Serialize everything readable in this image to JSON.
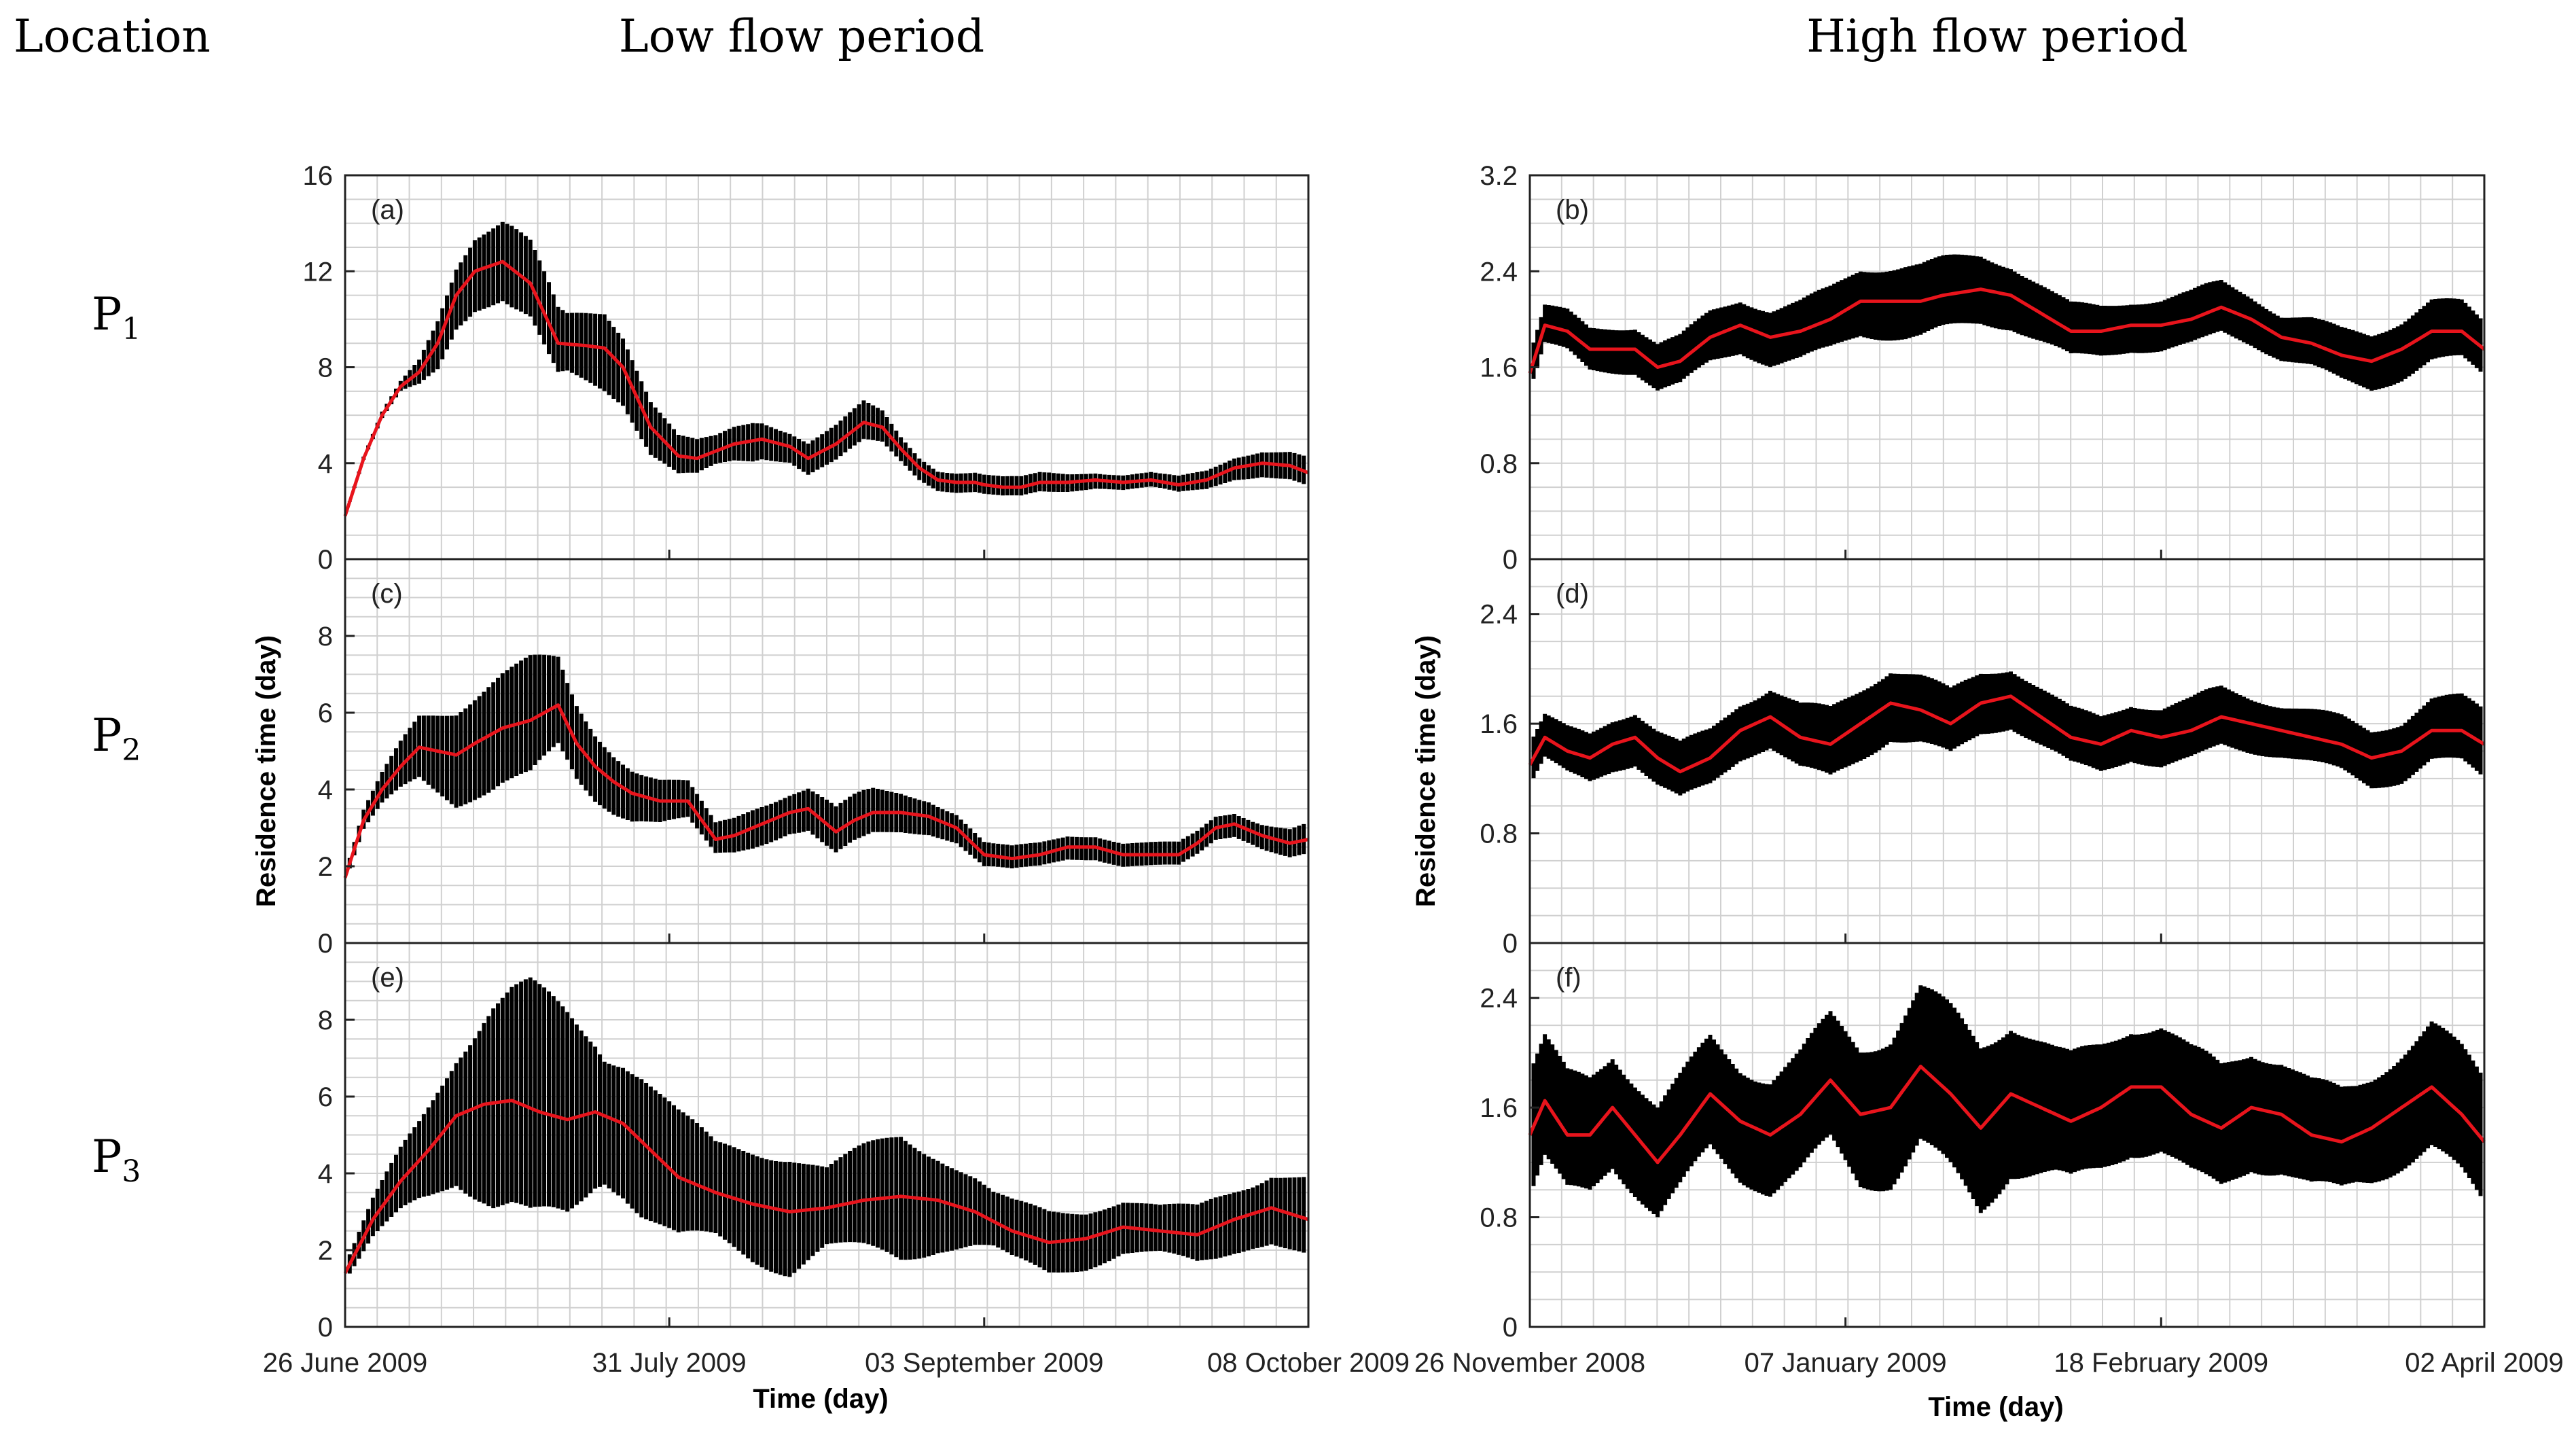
{
  "header": {
    "location_label": "Location",
    "low_flow_title": "Low flow period",
    "high_flow_title": "High flow period"
  },
  "rows": [
    {
      "label": "P",
      "sub": "1"
    },
    {
      "label": "P",
      "sub": "2"
    },
    {
      "label": "P",
      "sub": "3"
    }
  ],
  "colors": {
    "envelope": "#000000",
    "mean_line": "#e8141c",
    "grid": "#d0d0d0",
    "axis": "#222222"
  },
  "axes_text": {
    "ylabel": "Residence time (day)",
    "xlabel": "Time (day)"
  },
  "chart_data": [
    {
      "type": "line",
      "panel": "(a)",
      "group": "Low flow period",
      "location": "P1",
      "x_ticks": [
        "26 June  2009",
        "31 July 2009",
        "03 September  2009",
        "08 October  2009"
      ],
      "x_tick_pos": [
        0,
        35,
        69,
        104
      ],
      "xlim": [
        0,
        104
      ],
      "ylim": [
        0,
        16
      ],
      "yticks": [
        "0",
        "4",
        "8",
        "12",
        "16"
      ],
      "ytick_values": [
        0,
        4,
        8,
        12,
        16
      ],
      "cycle_days": 0.5,
      "series": [
        {
          "name": "mean",
          "x": [
            0,
            2,
            4,
            6,
            8,
            10,
            12,
            14,
            17,
            20,
            23,
            26,
            28,
            30,
            33,
            36,
            38,
            40,
            42,
            45,
            48,
            50,
            53,
            56,
            58,
            60,
            62,
            64,
            66,
            68,
            69,
            71,
            73,
            75,
            78,
            81,
            84,
            87,
            90,
            93,
            96,
            99,
            102,
            104
          ],
          "values": [
            1.8,
            4.2,
            6.0,
            7.2,
            7.8,
            9.0,
            11.0,
            12.0,
            12.4,
            11.5,
            9.0,
            8.9,
            8.8,
            8.0,
            5.5,
            4.3,
            4.2,
            4.5,
            4.8,
            5.0,
            4.7,
            4.2,
            4.8,
            5.7,
            5.5,
            4.6,
            3.8,
            3.3,
            3.2,
            3.2,
            3.1,
            3.0,
            3.0,
            3.2,
            3.2,
            3.3,
            3.2,
            3.3,
            3.1,
            3.3,
            3.8,
            4.0,
            3.9,
            3.6
          ]
        },
        {
          "name": "amplitude",
          "x": [
            0,
            6,
            8,
            10,
            14,
            18,
            22,
            24,
            28,
            32,
            36,
            40,
            44,
            48,
            52,
            56,
            60,
            64,
            70,
            76,
            82,
            88,
            94,
            98,
            104
          ],
          "values": [
            0.0,
            0.2,
            0.5,
            1.0,
            1.5,
            1.7,
            1.5,
            1.2,
            1.6,
            1.2,
            0.8,
            0.6,
            0.8,
            0.6,
            0.7,
            0.8,
            0.5,
            0.4,
            0.4,
            0.4,
            0.3,
            0.3,
            0.4,
            0.5,
            0.6
          ]
        }
      ]
    },
    {
      "type": "line",
      "panel": "(c)",
      "group": "Low flow period",
      "location": "P2",
      "x_ticks": [
        "26 June  2009",
        "31 July 2009",
        "03 September  2009",
        "08 October  2009"
      ],
      "x_tick_pos": [
        0,
        35,
        69,
        104
      ],
      "xlim": [
        0,
        104
      ],
      "ylim": [
        0,
        10
      ],
      "yticks": [
        "0",
        "2",
        "4",
        "6",
        "8"
      ],
      "ytick_values": [
        0,
        2,
        4,
        6,
        8
      ],
      "cycle_days": 0.5,
      "series": [
        {
          "name": "mean",
          "x": [
            0,
            2,
            4,
            6,
            8,
            10,
            12,
            14,
            17,
            20,
            23,
            25,
            27,
            29,
            31,
            34,
            37,
            40,
            42,
            45,
            48,
            50,
            53,
            55,
            57,
            60,
            63,
            66,
            69,
            72,
            75,
            78,
            81,
            84,
            87,
            90,
            92,
            94,
            96,
            99,
            102,
            104
          ],
          "values": [
            1.7,
            3.2,
            4.0,
            4.6,
            5.1,
            5.0,
            4.9,
            5.2,
            5.6,
            5.8,
            6.2,
            5.2,
            4.6,
            4.2,
            3.9,
            3.7,
            3.7,
            2.7,
            2.8,
            3.1,
            3.4,
            3.5,
            2.9,
            3.2,
            3.4,
            3.4,
            3.3,
            3.0,
            2.3,
            2.2,
            2.3,
            2.5,
            2.5,
            2.3,
            2.3,
            2.3,
            2.6,
            3.0,
            3.1,
            2.8,
            2.6,
            2.7
          ]
        },
        {
          "name": "amplitude",
          "x": [
            0,
            4,
            8,
            12,
            16,
            20,
            24,
            28,
            32,
            36,
            40,
            44,
            48,
            52,
            56,
            60,
            64,
            70,
            76,
            82,
            88,
            94,
            98,
            104
          ],
          "values": [
            0.1,
            0.4,
            0.8,
            1.2,
            1.4,
            1.5,
            1.0,
            0.8,
            0.6,
            0.5,
            0.4,
            0.5,
            0.5,
            0.6,
            0.6,
            0.5,
            0.4,
            0.3,
            0.3,
            0.3,
            0.3,
            0.3,
            0.3,
            0.4
          ]
        }
      ]
    },
    {
      "type": "line",
      "panel": "(e)",
      "group": "Low flow period",
      "location": "P3",
      "x_ticks": [
        "26 June  2009",
        "31 July 2009",
        "03 September  2009",
        "08 October  2009"
      ],
      "x_tick_pos": [
        0,
        35,
        69,
        104
      ],
      "xlim": [
        0,
        104
      ],
      "ylim": [
        0,
        10
      ],
      "yticks": [
        "0",
        "2",
        "4",
        "6",
        "8"
      ],
      "ytick_values": [
        0,
        2,
        4,
        6,
        8
      ],
      "cycle_days": 0.5,
      "series": [
        {
          "name": "mean",
          "x": [
            0,
            3,
            6,
            9,
            12,
            15,
            18,
            21,
            24,
            27,
            30,
            33,
            36,
            40,
            44,
            48,
            52,
            56,
            60,
            64,
            68,
            72,
            76,
            80,
            84,
            88,
            92,
            96,
            100,
            104
          ],
          "values": [
            1.4,
            2.8,
            3.8,
            4.6,
            5.5,
            5.8,
            5.9,
            5.6,
            5.4,
            5.6,
            5.3,
            4.6,
            3.9,
            3.5,
            3.2,
            3.0,
            3.1,
            3.3,
            3.4,
            3.3,
            3.0,
            2.5,
            2.2,
            2.3,
            2.6,
            2.5,
            2.4,
            2.8,
            3.1,
            2.8
          ]
        },
        {
          "name": "amplitude",
          "x": [
            0,
            4,
            8,
            12,
            16,
            20,
            24,
            28,
            32,
            36,
            40,
            44,
            48,
            52,
            56,
            60,
            64,
            70,
            76,
            82,
            88,
            94,
            98,
            104
          ],
          "values": [
            0.2,
            0.6,
            1.0,
            1.6,
            2.6,
            3.0,
            2.6,
            1.6,
            1.8,
            1.6,
            1.2,
            1.4,
            1.5,
            1.0,
            1.3,
            1.6,
            1.2,
            0.7,
            0.8,
            0.7,
            0.6,
            0.8,
            0.8,
            1.0
          ]
        }
      ]
    },
    {
      "type": "line",
      "panel": "(b)",
      "group": "High flow period",
      "location": "P1",
      "x_ticks": [
        "26 November 2008",
        "07 January  2009",
        "18 February 2009",
        "02 April  2009"
      ],
      "x_tick_pos": [
        0,
        42,
        84,
        127
      ],
      "xlim": [
        0,
        127
      ],
      "ylim": [
        0,
        3.2
      ],
      "yticks": [
        "0",
        "0.8",
        "1.6",
        "2.4",
        "3.2"
      ],
      "ytick_values": [
        0,
        0.8,
        1.6,
        2.4,
        3.2
      ],
      "cycle_days": 0.5,
      "series": [
        {
          "name": "mean",
          "x": [
            0,
            2,
            5,
            8,
            11,
            14,
            17,
            20,
            24,
            28,
            32,
            36,
            40,
            44,
            48,
            52,
            55,
            60,
            64,
            68,
            72,
            76,
            80,
            84,
            88,
            92,
            96,
            100,
            104,
            108,
            112,
            116,
            120,
            124,
            127
          ],
          "values": [
            1.55,
            1.95,
            1.9,
            1.75,
            1.75,
            1.75,
            1.6,
            1.65,
            1.85,
            1.95,
            1.85,
            1.9,
            2.0,
            2.15,
            2.15,
            2.15,
            2.2,
            2.25,
            2.2,
            2.05,
            1.9,
            1.9,
            1.95,
            1.95,
            2.0,
            2.1,
            2.0,
            1.85,
            1.8,
            1.7,
            1.65,
            1.75,
            1.9,
            1.9,
            1.75
          ]
        },
        {
          "name": "amplitude",
          "x": [
            0,
            10,
            20,
            30,
            40,
            50,
            60,
            70,
            80,
            90,
            100,
            110,
            120,
            127
          ],
          "values": [
            0.15,
            0.18,
            0.2,
            0.22,
            0.25,
            0.3,
            0.28,
            0.22,
            0.2,
            0.22,
            0.18,
            0.22,
            0.25,
            0.22
          ]
        }
      ]
    },
    {
      "type": "line",
      "panel": "(d)",
      "group": "High flow period",
      "location": "P2",
      "x_ticks": [
        "26 November 2008",
        "07 January  2009",
        "18 February 2009",
        "02 April  2009"
      ],
      "x_tick_pos": [
        0,
        42,
        84,
        127
      ],
      "xlim": [
        0,
        127
      ],
      "ylim": [
        0,
        2.8
      ],
      "yticks": [
        "0",
        "0.8",
        "1.6",
        "2.4"
      ],
      "ytick_values": [
        0,
        0.8,
        1.6,
        2.4
      ],
      "cycle_days": 0.5,
      "series": [
        {
          "name": "mean",
          "x": [
            0,
            2,
            5,
            8,
            11,
            14,
            17,
            20,
            24,
            28,
            32,
            36,
            40,
            44,
            48,
            52,
            56,
            60,
            64,
            68,
            72,
            76,
            80,
            84,
            88,
            92,
            96,
            100,
            104,
            108,
            112,
            116,
            120,
            124,
            127
          ],
          "values": [
            1.3,
            1.5,
            1.4,
            1.35,
            1.45,
            1.5,
            1.35,
            1.25,
            1.35,
            1.55,
            1.65,
            1.5,
            1.45,
            1.6,
            1.75,
            1.7,
            1.6,
            1.75,
            1.8,
            1.65,
            1.5,
            1.45,
            1.55,
            1.5,
            1.55,
            1.65,
            1.6,
            1.55,
            1.5,
            1.45,
            1.35,
            1.4,
            1.55,
            1.55,
            1.45
          ]
        },
        {
          "name": "amplitude",
          "x": [
            0,
            10,
            20,
            30,
            40,
            50,
            60,
            70,
            80,
            90,
            100,
            110,
            120,
            127
          ],
          "values": [
            0.15,
            0.18,
            0.2,
            0.2,
            0.25,
            0.25,
            0.22,
            0.2,
            0.2,
            0.22,
            0.18,
            0.2,
            0.22,
            0.25
          ]
        }
      ]
    },
    {
      "type": "line",
      "panel": "(f)",
      "group": "High flow period",
      "location": "P3",
      "x_ticks": [
        "26 November 2008",
        "07 January  2009",
        "18 February 2009",
        "02 April  2009"
      ],
      "x_tick_pos": [
        0,
        42,
        84,
        127
      ],
      "xlim": [
        0,
        127
      ],
      "ylim": [
        0,
        2.8
      ],
      "yticks": [
        "0",
        "0.8",
        "1.6",
        "2.4"
      ],
      "ytick_values": [
        0,
        0.8,
        1.6,
        2.4
      ],
      "cycle_days": 0.5,
      "series": [
        {
          "name": "mean",
          "x": [
            0,
            2,
            5,
            8,
            11,
            14,
            17,
            20,
            24,
            28,
            32,
            36,
            40,
            44,
            48,
            52,
            56,
            60,
            64,
            68,
            72,
            76,
            80,
            84,
            88,
            92,
            96,
            100,
            104,
            108,
            112,
            116,
            120,
            124,
            127
          ],
          "values": [
            1.4,
            1.65,
            1.4,
            1.4,
            1.6,
            1.4,
            1.2,
            1.4,
            1.7,
            1.5,
            1.4,
            1.55,
            1.8,
            1.55,
            1.6,
            1.9,
            1.7,
            1.45,
            1.7,
            1.6,
            1.5,
            1.6,
            1.75,
            1.75,
            1.55,
            1.45,
            1.6,
            1.55,
            1.4,
            1.35,
            1.45,
            1.6,
            1.75,
            1.55,
            1.35
          ]
        },
        {
          "name": "amplitude",
          "x": [
            0,
            10,
            20,
            30,
            40,
            50,
            60,
            70,
            80,
            90,
            100,
            110,
            120,
            127
          ],
          "values": [
            0.45,
            0.4,
            0.4,
            0.4,
            0.45,
            0.55,
            0.6,
            0.45,
            0.45,
            0.45,
            0.4,
            0.35,
            0.45,
            0.45
          ]
        }
      ]
    }
  ]
}
